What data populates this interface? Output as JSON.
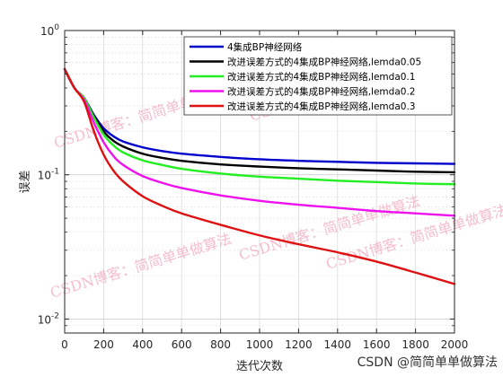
{
  "chart_data": {
    "type": "line",
    "title": "",
    "xlabel": "迭代次数",
    "ylabel": "误差",
    "xlim": [
      0,
      2000
    ],
    "ylim": [
      0.008,
      1
    ],
    "yscale": "log",
    "grid": true,
    "legend_position": "top-right",
    "x_ticks": [
      0,
      200,
      400,
      600,
      800,
      1000,
      1200,
      1400,
      1600,
      1800,
      2000
    ],
    "y_tick_labels": [
      "10^-2",
      "10^-1",
      "10^0"
    ],
    "x": [
      0,
      50,
      100,
      150,
      200,
      250,
      300,
      400,
      500,
      600,
      800,
      1000,
      1200,
      1400,
      1600,
      1800,
      2000
    ],
    "series": [
      {
        "name": "4集成BP神经网络",
        "color": "#0000cc",
        "values": [
          0.54,
          0.4,
          0.34,
          0.26,
          0.21,
          0.185,
          0.17,
          0.155,
          0.146,
          0.14,
          0.133,
          0.128,
          0.125,
          0.123,
          0.121,
          0.12,
          0.119
        ]
      },
      {
        "name": "改进误差方式的4集成BP神经网络,lemda0.05",
        "color": "#000000",
        "values": [
          0.54,
          0.4,
          0.34,
          0.255,
          0.2,
          0.172,
          0.157,
          0.14,
          0.131,
          0.125,
          0.118,
          0.114,
          0.111,
          0.109,
          0.107,
          0.105,
          0.104
        ]
      },
      {
        "name": "改进误差方式的4集成BP神经网络,lemda0.1",
        "color": "#22ee22",
        "values": [
          0.54,
          0.4,
          0.34,
          0.25,
          0.19,
          0.16,
          0.143,
          0.126,
          0.117,
          0.11,
          0.102,
          0.097,
          0.094,
          0.091,
          0.089,
          0.087,
          0.086
        ]
      },
      {
        "name": "改进误差方式的4集成BP神经网络,lemda0.2",
        "color": "#ee11ee",
        "values": [
          0.54,
          0.4,
          0.33,
          0.23,
          0.168,
          0.135,
          0.117,
          0.098,
          0.088,
          0.081,
          0.072,
          0.066,
          0.062,
          0.059,
          0.056,
          0.054,
          0.052
        ]
      },
      {
        "name": "改进误差方式的4集成BP神经网络,lemda0.3",
        "color": "#dd1111",
        "values": [
          0.54,
          0.4,
          0.32,
          0.2,
          0.138,
          0.107,
          0.09,
          0.071,
          0.061,
          0.054,
          0.045,
          0.038,
          0.033,
          0.029,
          0.025,
          0.021,
          0.0175
        ]
      }
    ]
  },
  "watermark": {
    "text": "CSDN博客：简简单单做算法",
    "color": "#f2a8bf"
  },
  "credit": "CSDN @简简单单做算法"
}
